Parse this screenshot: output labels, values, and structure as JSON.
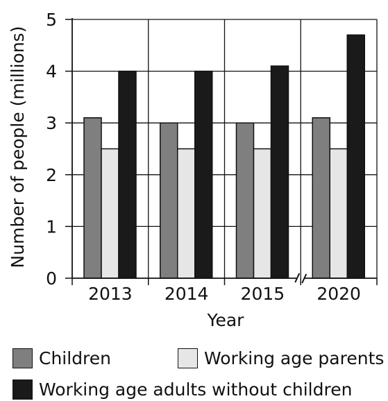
{
  "chart_data": {
    "type": "bar",
    "categories": [
      "2013",
      "2014",
      "2015",
      "2020"
    ],
    "series": [
      {
        "name": "Children",
        "values": [
          3.1,
          3.0,
          3.0,
          3.1
        ],
        "color": "#7f7f7f"
      },
      {
        "name": "Working age parents",
        "values": [
          2.5,
          2.5,
          2.5,
          2.5
        ],
        "color": "#e6e6e6"
      },
      {
        "name": "Working age adults without children",
        "values": [
          4.0,
          4.0,
          4.1,
          4.7
        ],
        "color": "#1a1a1a"
      }
    ],
    "xlabel": "Year",
    "ylabel": "Number of people (millions)",
    "ylim": [
      0,
      5
    ],
    "yticks": [
      "0",
      "1",
      "2",
      "3",
      "4",
      "5"
    ],
    "grid": "horizontal and vertical",
    "axis_break_between": [
      "2015",
      "2020"
    ],
    "legend_position": "bottom"
  }
}
